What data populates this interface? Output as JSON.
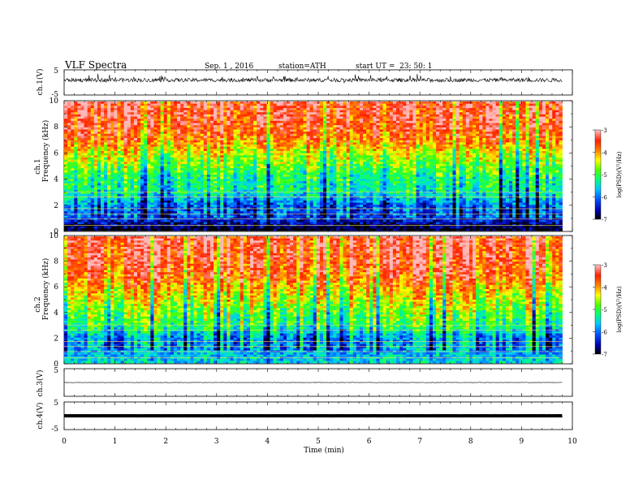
{
  "header": {
    "title": "VLF Spectra",
    "date": "Sep. 1 , 2016",
    "station": "station=ATH",
    "start": "start UT =  23: 50: 1"
  },
  "chart_data": [
    {
      "type": "line",
      "panel": "ch1-waveform",
      "ylabel": "ch.1(V)",
      "ylim": [
        -5,
        5
      ],
      "yticks": [
        "5",
        "-5"
      ],
      "xlim": [
        0,
        10
      ],
      "note": "noisy waveform centered near +1 V with spikes to about +3.5 V and -1 V, spanning 0 to 9.8 min"
    },
    {
      "type": "heatmap",
      "panel": "ch1-spectrogram",
      "ylabel": "ch.1\nFrequency (kHz)",
      "ylabel_lines": [
        "ch.1",
        "Frequency (kHz)"
      ],
      "ylim": [
        0,
        10
      ],
      "yticks": [
        "10",
        "8",
        "6",
        "4",
        "2",
        "0"
      ],
      "xlim": [
        0,
        9.8
      ],
      "colorbar": {
        "label": "log(PSD)(V²/Hz)",
        "range": [
          -7,
          -3
        ],
        "ticks": [
          "-3",
          "-4",
          "-5",
          "-6",
          "-7"
        ]
      },
      "profile_kHz_vs_logPSD": [
        [
          0,
          -7
        ],
        [
          1,
          -6.2
        ],
        [
          2,
          -6
        ],
        [
          3,
          -5.3
        ],
        [
          4,
          -5.2
        ],
        [
          5,
          -4.8
        ],
        [
          6,
          -4.4
        ],
        [
          7,
          -3.8
        ],
        [
          8,
          -3.5
        ],
        [
          10,
          -3.3
        ]
      ]
    },
    {
      "type": "heatmap",
      "panel": "ch2-spectrogram",
      "ylabel": "ch.2\nFrequency (kHz)",
      "ylabel_lines": [
        "ch.2",
        "Frequency (kHz)"
      ],
      "ylim": [
        0,
        10
      ],
      "yticks": [
        "10",
        "8",
        "6",
        "4",
        "2",
        "0"
      ],
      "xlim": [
        0,
        9.8
      ],
      "colorbar": {
        "label": "log(PSD)(V²/Hz)",
        "range": [
          -7,
          -3
        ],
        "ticks": [
          "-3",
          "-4",
          "-5",
          "-6",
          "-7"
        ]
      },
      "profile_kHz_vs_logPSD": [
        [
          0,
          -5.5
        ],
        [
          1,
          -5.8
        ],
        [
          2,
          -5.8
        ],
        [
          3,
          -5
        ],
        [
          4,
          -4.8
        ],
        [
          5,
          -4.4
        ],
        [
          6,
          -4
        ],
        [
          7,
          -3.6
        ],
        [
          8,
          -3.4
        ],
        [
          10,
          -3.3
        ]
      ]
    },
    {
      "type": "line",
      "panel": "ch3-waveform",
      "ylabel": "ch.3(V)",
      "ylim": [
        -5,
        5
      ],
      "yticks": [
        "5",
        "-5"
      ],
      "xlim": [
        0,
        10
      ],
      "note": "flat trace near 0 V"
    },
    {
      "type": "line",
      "panel": "ch4-waveform",
      "ylabel": "ch.4(V)",
      "ylim": [
        -5,
        5
      ],
      "yticks": [
        "5",
        "-5"
      ],
      "xlim": [
        0,
        10
      ],
      "note": "thick flat trace near 0 V"
    }
  ],
  "xaxis": {
    "label": "Time (min)",
    "ticks": [
      "0",
      "1",
      "2",
      "3",
      "4",
      "5",
      "6",
      "7",
      "8",
      "9",
      "10"
    ]
  },
  "colors": {
    "scale": [
      "#000000",
      "#0000b0",
      "#0050ff",
      "#00c8ff",
      "#00ff80",
      "#50ff00",
      "#ffff00",
      "#ff8000",
      "#ff2000",
      "#ffb8b8"
    ]
  }
}
